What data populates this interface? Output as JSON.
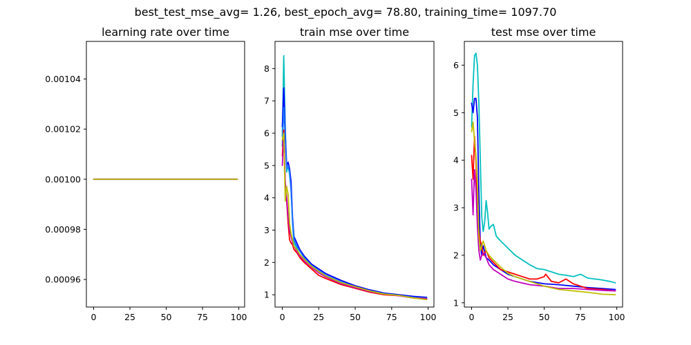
{
  "figure": {
    "suptitle": "best_test_mse_avg= 1.26, best_epoch_avg= 78.80, training_time= 1097.70"
  },
  "chart_data": [
    {
      "type": "line",
      "title": "learning rate over time",
      "xlabel": "",
      "ylabel": "",
      "xlim": [
        -5,
        104
      ],
      "ylim": [
        0.000949,
        0.001055
      ],
      "xticks": [
        0,
        25,
        50,
        75,
        100
      ],
      "yticks": [
        0.00096,
        0.00098,
        0.001,
        0.00102,
        0.00104
      ],
      "ytick_labels": [
        "0.00096",
        "0.00098",
        "0.00100",
        "0.00102",
        "0.00104"
      ],
      "grid": false,
      "series": [
        {
          "color": "#0000ff",
          "x": [
            0,
            99
          ],
          "y": [
            0.001,
            0.001
          ]
        },
        {
          "color": "#ff0000",
          "x": [
            0,
            99
          ],
          "y": [
            0.001,
            0.001
          ]
        },
        {
          "color": "#00bfbf",
          "x": [
            0,
            99
          ],
          "y": [
            0.001,
            0.001
          ]
        },
        {
          "color": "#bf00bf",
          "x": [
            0,
            99
          ],
          "y": [
            0.001,
            0.001
          ]
        },
        {
          "color": "#bfbf00",
          "x": [
            0,
            99
          ],
          "y": [
            0.001,
            0.001
          ]
        }
      ]
    },
    {
      "type": "line",
      "title": "train mse over time",
      "xlabel": "",
      "ylabel": "",
      "xlim": [
        -5,
        104
      ],
      "ylim": [
        0.62,
        8.84
      ],
      "xticks": [
        0,
        25,
        50,
        75,
        100
      ],
      "yticks": [
        1,
        2,
        3,
        4,
        5,
        6,
        7,
        8
      ],
      "ytick_labels": [
        "1",
        "2",
        "3",
        "4",
        "5",
        "6",
        "7",
        "8"
      ],
      "grid": false,
      "series": [
        {
          "color": "#00bfbf",
          "x": [
            0,
            1,
            2,
            3,
            4,
            5,
            6,
            7,
            8,
            10,
            12,
            15,
            20,
            25,
            30,
            40,
            50,
            60,
            70,
            80,
            90,
            99
          ],
          "y": [
            5.9,
            8.4,
            6.2,
            4.8,
            5.0,
            4.7,
            4.3,
            3.2,
            2.6,
            2.45,
            2.35,
            2.15,
            1.9,
            1.75,
            1.6,
            1.4,
            1.25,
            1.15,
            1.05,
            1.0,
            0.92,
            0.85
          ]
        },
        {
          "color": "#0000ff",
          "x": [
            0,
            1,
            2,
            3,
            4,
            5,
            6,
            7,
            8,
            10,
            12,
            15,
            20,
            25,
            30,
            40,
            50,
            60,
            70,
            80,
            90,
            99
          ],
          "y": [
            6.2,
            7.4,
            6.0,
            5.0,
            5.1,
            4.9,
            4.5,
            3.4,
            2.8,
            2.6,
            2.4,
            2.2,
            1.95,
            1.8,
            1.65,
            1.45,
            1.28,
            1.15,
            1.05,
            1.0,
            0.95,
            0.92
          ]
        },
        {
          "color": "#1f77ff",
          "x": [
            0,
            1,
            2,
            3,
            4,
            5,
            6,
            7,
            8,
            10,
            12,
            15,
            20,
            25,
            30,
            40,
            50,
            60,
            70,
            80,
            90,
            99
          ],
          "y": [
            5.6,
            6.8,
            5.8,
            4.9,
            5.0,
            4.8,
            4.2,
            3.3,
            2.7,
            2.5,
            2.35,
            2.15,
            1.9,
            1.75,
            1.6,
            1.4,
            1.25,
            1.12,
            1.03,
            0.98,
            0.92,
            0.9
          ]
        },
        {
          "color": "#ff0000",
          "x": [
            0,
            1,
            2,
            3,
            4,
            5,
            6,
            7,
            8,
            10,
            12,
            15,
            20,
            25,
            30,
            40,
            50,
            60,
            70,
            80,
            90,
            99
          ],
          "y": [
            5.3,
            6.1,
            4.4,
            3.9,
            3.2,
            2.7,
            2.6,
            2.55,
            2.4,
            2.3,
            2.15,
            2.0,
            1.8,
            1.6,
            1.5,
            1.32,
            1.2,
            1.08,
            1.0,
            0.97,
            0.9,
            0.88
          ]
        },
        {
          "color": "#bf00bf",
          "x": [
            0,
            1,
            2,
            3,
            4,
            5,
            6,
            7,
            8,
            10,
            12,
            15,
            20,
            25,
            30,
            40,
            50,
            60,
            70,
            80,
            90,
            99
          ],
          "y": [
            5.0,
            5.9,
            4.5,
            4.0,
            3.4,
            3.0,
            2.8,
            2.6,
            2.5,
            2.35,
            2.2,
            2.05,
            1.85,
            1.68,
            1.55,
            1.35,
            1.22,
            1.1,
            1.02,
            0.97,
            0.9,
            0.87
          ]
        },
        {
          "color": "#bfbf00",
          "x": [
            0,
            1,
            2,
            3,
            4,
            5,
            6,
            7,
            8,
            10,
            12,
            15,
            20,
            25,
            30,
            40,
            50,
            60,
            70,
            80,
            90,
            99
          ],
          "y": [
            5.8,
            6.0,
            3.9,
            4.35,
            4.1,
            3.2,
            2.9,
            2.7,
            2.5,
            2.4,
            2.25,
            2.1,
            1.88,
            1.72,
            1.58,
            1.38,
            1.25,
            1.12,
            1.02,
            0.98,
            0.9,
            0.85
          ]
        }
      ]
    },
    {
      "type": "line",
      "title": "test mse over time",
      "xlabel": "",
      "ylabel": "",
      "xlim": [
        -5,
        104
      ],
      "ylim": [
        0.91,
        6.5
      ],
      "xticks": [
        0,
        25,
        50,
        75,
        100
      ],
      "yticks": [
        1,
        2,
        3,
        4,
        5,
        6
      ],
      "ytick_labels": [
        "1",
        "2",
        "3",
        "4",
        "5",
        "6"
      ],
      "grid": false,
      "series": [
        {
          "color": "#00bfbf",
          "x": [
            0,
            1,
            2,
            3,
            4,
            5,
            6,
            7,
            8,
            9,
            10,
            11,
            12,
            13,
            15,
            17,
            20,
            25,
            30,
            35,
            40,
            45,
            50,
            55,
            60,
            65,
            70,
            75,
            80,
            85,
            90,
            95,
            99
          ],
          "y": [
            4.7,
            5.6,
            6.2,
            6.25,
            6.0,
            5.2,
            4.0,
            2.8,
            2.5,
            2.7,
            3.15,
            2.9,
            2.55,
            2.6,
            2.65,
            2.4,
            2.3,
            2.15,
            2.0,
            1.9,
            1.8,
            1.72,
            1.7,
            1.65,
            1.6,
            1.58,
            1.55,
            1.6,
            1.52,
            1.5,
            1.48,
            1.45,
            1.42
          ]
        },
        {
          "color": "#0000ff",
          "x": [
            0,
            1,
            2,
            3,
            4,
            5,
            6,
            7,
            8,
            10,
            12,
            15,
            20,
            25,
            30,
            40,
            50,
            60,
            70,
            80,
            90,
            99
          ],
          "y": [
            5.2,
            5.0,
            5.3,
            5.3,
            4.9,
            3.3,
            2.2,
            2.0,
            2.2,
            1.95,
            1.9,
            1.8,
            1.7,
            1.6,
            1.55,
            1.45,
            1.4,
            1.38,
            1.35,
            1.32,
            1.3,
            1.28
          ]
        },
        {
          "color": "#ff0000",
          "x": [
            0,
            1,
            2,
            3,
            4,
            5,
            6,
            7,
            8,
            10,
            12,
            15,
            20,
            25,
            30,
            35,
            40,
            45,
            50,
            51,
            55,
            60,
            65,
            70,
            75,
            80,
            90,
            99
          ],
          "y": [
            4.1,
            3.6,
            4.5,
            4.0,
            3.0,
            2.5,
            2.3,
            2.2,
            2.0,
            2.1,
            1.95,
            1.85,
            1.7,
            1.65,
            1.6,
            1.55,
            1.5,
            1.5,
            1.55,
            1.6,
            1.45,
            1.42,
            1.5,
            1.4,
            1.35,
            1.3,
            1.28,
            1.25
          ]
        },
        {
          "color": "#bf00bf",
          "x": [
            0,
            1,
            2,
            3,
            4,
            5,
            6,
            7,
            8,
            10,
            12,
            15,
            20,
            25,
            30,
            40,
            50,
            60,
            70,
            80,
            90,
            99
          ],
          "y": [
            3.6,
            2.85,
            3.8,
            3.4,
            2.6,
            2.1,
            1.9,
            2.0,
            2.05,
            1.95,
            1.8,
            1.7,
            1.6,
            1.5,
            1.45,
            1.38,
            1.35,
            1.3,
            1.3,
            1.28,
            1.26,
            1.25
          ]
        },
        {
          "color": "#bfbf00",
          "x": [
            0,
            1,
            2,
            3,
            4,
            5,
            6,
            7,
            8,
            10,
            12,
            15,
            20,
            25,
            30,
            40,
            50,
            60,
            70,
            80,
            90,
            99
          ],
          "y": [
            4.6,
            4.8,
            4.4,
            4.1,
            3.5,
            2.4,
            2.1,
            2.2,
            2.3,
            2.1,
            2.0,
            1.9,
            1.75,
            1.62,
            1.55,
            1.45,
            1.35,
            1.28,
            1.25,
            1.22,
            1.18,
            1.17
          ]
        }
      ]
    }
  ]
}
